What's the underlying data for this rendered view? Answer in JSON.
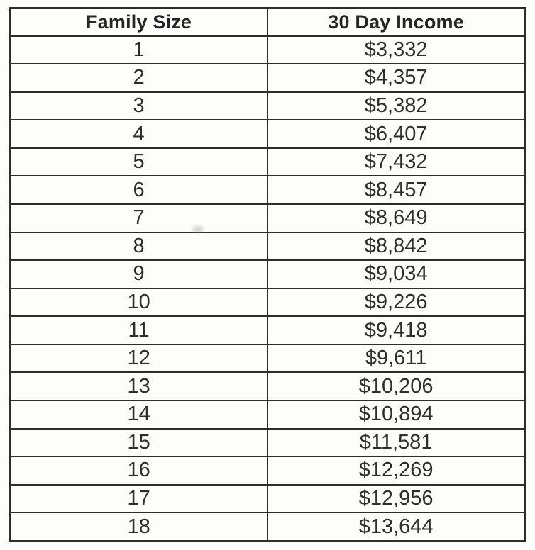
{
  "page": {
    "background_color": "#fdfdfc",
    "border_color": "#2d2d2d",
    "text_color": "#2e2e2e"
  },
  "table": {
    "headers": {
      "family_size": "Family Size",
      "income": "30 Day Income"
    },
    "rows": [
      {
        "family_size": "1",
        "income": "$3,332"
      },
      {
        "family_size": "2",
        "income": "$4,357"
      },
      {
        "family_size": "3",
        "income": "$5,382"
      },
      {
        "family_size": "4",
        "income": "$6,407"
      },
      {
        "family_size": "5",
        "income": "$7,432"
      },
      {
        "family_size": "6",
        "income": "$8,457"
      },
      {
        "family_size": "7",
        "income": "$8,649"
      },
      {
        "family_size": "8",
        "income": "$8,842"
      },
      {
        "family_size": "9",
        "income": "$9,034"
      },
      {
        "family_size": "10",
        "income": "$9,226"
      },
      {
        "family_size": "11",
        "income": "$9,418"
      },
      {
        "family_size": "12",
        "income": "$9,611"
      },
      {
        "family_size": "13",
        "income": "$10,206"
      },
      {
        "family_size": "14",
        "income": "$10,894"
      },
      {
        "family_size": "15",
        "income": "$11,581"
      },
      {
        "family_size": "16",
        "income": "$12,269"
      },
      {
        "family_size": "17",
        "income": "$12,956"
      },
      {
        "family_size": "18",
        "income": "$13,644"
      }
    ]
  },
  "chart_data": {
    "type": "table",
    "title": "",
    "columns": [
      "Family Size",
      "30 Day Income"
    ],
    "family_size": [
      1,
      2,
      3,
      4,
      5,
      6,
      7,
      8,
      9,
      10,
      11,
      12,
      13,
      14,
      15,
      16,
      17,
      18
    ],
    "income_30_day_usd": [
      3332,
      4357,
      5382,
      6407,
      7432,
      8457,
      8649,
      8842,
      9034,
      9226,
      9418,
      9611,
      10206,
      10894,
      11581,
      12269,
      12956,
      13644
    ]
  }
}
